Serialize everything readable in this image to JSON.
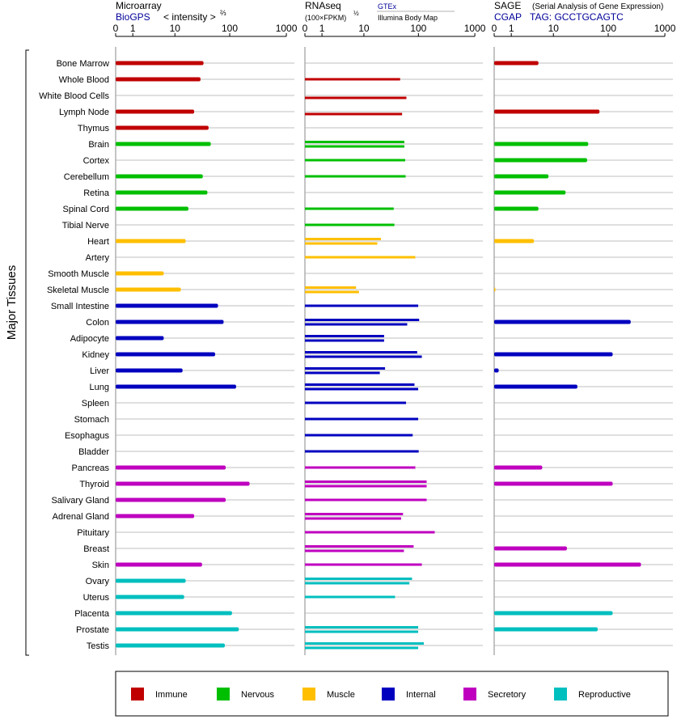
{
  "panels": [
    {
      "title": "Microarray",
      "subtitle_link": "BioGPS",
      "subtitle_text": "< intensity >",
      "subtitle_exp": "⅔",
      "source_top": "",
      "source_bottom": ""
    },
    {
      "title": "RNAseq",
      "subtitle_link": "",
      "subtitle_text": "(100×FPKM)",
      "subtitle_exp": "½",
      "source_top": "GTEx",
      "source_bottom": "Illumina Body Map"
    },
    {
      "title": "SAGE",
      "title_note": "(Serial Analysis of Gene Expression)",
      "subtitle_link": "CGAP",
      "subtitle_text": "TAG: GCCTGCAGTC",
      "subtitle_exp": "",
      "source_top": "",
      "source_bottom": ""
    }
  ],
  "axis_ticks": [
    "0",
    "1",
    "10",
    "100",
    "1000"
  ],
  "y_axis_label": "Major Tissues",
  "group_colors": {
    "immune": "#c00000",
    "nervous": "#00bf00",
    "muscle": "#ffbf00",
    "internal": "#0000bf",
    "secretory": "#bf00bf",
    "reproductive": "#00bfbf"
  },
  "legend": [
    {
      "label": "Immune",
      "group": "immune"
    },
    {
      "label": "Nervous",
      "group": "nervous"
    },
    {
      "label": "Muscle",
      "group": "muscle"
    },
    {
      "label": "Internal",
      "group": "internal"
    },
    {
      "label": "Secretory",
      "group": "secretory"
    },
    {
      "label": "Reproductive",
      "group": "reproductive"
    }
  ],
  "chart_data": {
    "type": "bar",
    "orientation": "horizontal",
    "x_scale": "log(1+x)",
    "xlim": [
      0,
      1000
    ],
    "grid": true,
    "legend_placement": "bottom",
    "series": [
      {
        "panel": 0,
        "name": "Microarray"
      },
      {
        "panel": 1,
        "name": "RNAseq"
      },
      {
        "panel": 2,
        "name": "SAGE"
      }
    ],
    "tissues": [
      {
        "name": "Bone Marrow",
        "group": "immune",
        "microarray": [
          34
        ],
        "rnaseq_gtex": [],
        "rnaseq_ibm": [],
        "sage": 5
      },
      {
        "name": "Whole Blood",
        "group": "immune",
        "microarray": [
          30
        ],
        "rnaseq_gtex": [
          47
        ],
        "rnaseq_ibm": [],
        "sage": null
      },
      {
        "name": "White Blood Cells",
        "group": "immune",
        "microarray": [],
        "rnaseq_gtex": [],
        "rnaseq_ibm": [
          61
        ],
        "sage": null
      },
      {
        "name": "Lymph Node",
        "group": "immune",
        "microarray": [
          23
        ],
        "rnaseq_gtex": [],
        "rnaseq_ibm": [
          51
        ],
        "sage": 70
      },
      {
        "name": "Thymus",
        "group": "immune",
        "microarray": [
          42
        ],
        "rnaseq_gtex": [],
        "rnaseq_ibm": [],
        "sage": null
      },
      {
        "name": "Brain",
        "group": "nervous",
        "microarray": [
          46
        ],
        "rnaseq_gtex": [
          56
        ],
        "rnaseq_ibm": [
          56
        ],
        "sage": 44
      },
      {
        "name": "Cortex",
        "group": "nervous",
        "microarray": [],
        "rnaseq_gtex": [
          58
        ],
        "rnaseq_ibm": [],
        "sage": 42
      },
      {
        "name": "Cerebellum",
        "group": "nervous",
        "microarray": [
          33
        ],
        "rnaseq_gtex": [
          59
        ],
        "rnaseq_ibm": [],
        "sage": 8
      },
      {
        "name": "Retina",
        "group": "nervous",
        "microarray": [
          40
        ],
        "rnaseq_gtex": [],
        "rnaseq_ibm": [],
        "sage": 17
      },
      {
        "name": "Spinal Cord",
        "group": "nervous",
        "microarray": [
          18
        ],
        "rnaseq_gtex": [
          36
        ],
        "rnaseq_ibm": [],
        "sage": 5
      },
      {
        "name": "Tibial Nerve",
        "group": "nervous",
        "microarray": [],
        "rnaseq_gtex": [
          37
        ],
        "rnaseq_ibm": [],
        "sage": null
      },
      {
        "name": "Heart",
        "group": "muscle",
        "microarray": [
          16
        ],
        "rnaseq_gtex": [
          21
        ],
        "rnaseq_ibm": [
          18
        ],
        "sage": 4
      },
      {
        "name": "Artery",
        "group": "muscle",
        "microarray": [],
        "rnaseq_gtex": [
          88
        ],
        "rnaseq_ibm": [],
        "sage": null
      },
      {
        "name": "Smooth Muscle",
        "group": "muscle",
        "microarray": [
          6
        ],
        "rnaseq_gtex": [],
        "rnaseq_ibm": [],
        "sage": null
      },
      {
        "name": "Skeletal Muscle",
        "group": "muscle",
        "microarray": [
          13
        ],
        "rnaseq_gtex": [
          7
        ],
        "rnaseq_ibm": [
          8
        ],
        "sage": 0
      },
      {
        "name": "Small Intestine",
        "group": "internal",
        "microarray": [
          62
        ],
        "rnaseq_gtex": [
          99
        ],
        "rnaseq_ibm": [],
        "sage": null
      },
      {
        "name": "Colon",
        "group": "internal",
        "microarray": [
          78
        ],
        "rnaseq_gtex": [
          103
        ],
        "rnaseq_ibm": [
          63
        ],
        "sage": 250
      },
      {
        "name": "Adipocyte",
        "group": "internal",
        "microarray": [
          6
        ],
        "rnaseq_gtex": [
          24
        ],
        "rnaseq_ibm": [
          24
        ],
        "sage": null
      },
      {
        "name": "Kidney",
        "group": "internal",
        "microarray": [
          55
        ],
        "rnaseq_gtex": [
          95
        ],
        "rnaseq_ibm": [
          115
        ],
        "sage": 120
      },
      {
        "name": "Liver",
        "group": "internal",
        "microarray": [
          14
        ],
        "rnaseq_gtex": [
          25
        ],
        "rnaseq_ibm": [
          20
        ],
        "sage": 0.2
      },
      {
        "name": "Lung",
        "group": "internal",
        "microarray": [
          130
        ],
        "rnaseq_gtex": [
          85
        ],
        "rnaseq_ibm": [
          99
        ],
        "sage": 28
      },
      {
        "name": "Spleen",
        "group": "internal",
        "microarray": [],
        "rnaseq_gtex": [
          60
        ],
        "rnaseq_ibm": [],
        "sage": null
      },
      {
        "name": "Stomach",
        "group": "internal",
        "microarray": [],
        "rnaseq_gtex": [
          99
        ],
        "rnaseq_ibm": [],
        "sage": null
      },
      {
        "name": "Esophagus",
        "group": "internal",
        "microarray": [],
        "rnaseq_gtex": [
          79
        ],
        "rnaseq_ibm": [],
        "sage": null
      },
      {
        "name": "Bladder",
        "group": "internal",
        "microarray": [],
        "rnaseq_gtex": [
          101
        ],
        "rnaseq_ibm": [],
        "sage": null
      },
      {
        "name": "Pancreas",
        "group": "secretory",
        "microarray": [
          85
        ],
        "rnaseq_gtex": [
          88
        ],
        "rnaseq_ibm": [],
        "sage": 6
      },
      {
        "name": "Thyroid",
        "group": "secretory",
        "microarray": [
          225
        ],
        "rnaseq_gtex": [
          140
        ],
        "rnaseq_ibm": [
          140
        ],
        "sage": 120
      },
      {
        "name": "Salivary Gland",
        "group": "secretory",
        "microarray": [
          85
        ],
        "rnaseq_gtex": [
          140
        ],
        "rnaseq_ibm": [],
        "sage": null
      },
      {
        "name": "Adrenal Gland",
        "group": "secretory",
        "microarray": [
          23
        ],
        "rnaseq_gtex": [
          53
        ],
        "rnaseq_ibm": [
          49
        ],
        "sage": null
      },
      {
        "name": "Pituitary",
        "group": "secretory",
        "microarray": [],
        "rnaseq_gtex": [
          195
        ],
        "rnaseq_ibm": [],
        "sage": null
      },
      {
        "name": "Breast",
        "group": "secretory",
        "microarray": [],
        "rnaseq_gtex": [
          82
        ],
        "rnaseq_ibm": [
          55
        ],
        "sage": 18
      },
      {
        "name": "Skin",
        "group": "secretory",
        "microarray": [
          32
        ],
        "rnaseq_gtex": [
          115
        ],
        "rnaseq_ibm": [],
        "sage": 380
      },
      {
        "name": "Ovary",
        "group": "reproductive",
        "microarray": [
          16
        ],
        "rnaseq_gtex": [
          77
        ],
        "rnaseq_ibm": [
          69
        ],
        "sage": null
      },
      {
        "name": "Uterus",
        "group": "reproductive",
        "microarray": [
          15
        ],
        "rnaseq_gtex": [
          38
        ],
        "rnaseq_ibm": [],
        "sage": null
      },
      {
        "name": "Placenta",
        "group": "reproductive",
        "microarray": [
          110
        ],
        "rnaseq_gtex": [],
        "rnaseq_ibm": [],
        "sage": 120
      },
      {
        "name": "Prostate",
        "group": "reproductive",
        "microarray": [
          145
        ],
        "rnaseq_gtex": [
          99
        ],
        "rnaseq_ibm": [
          99
        ],
        "sage": 65
      },
      {
        "name": "Testis",
        "group": "reproductive",
        "microarray": [
          82
        ],
        "rnaseq_gtex": [
          125
        ],
        "rnaseq_ibm": [
          99
        ],
        "sage": null
      }
    ]
  }
}
